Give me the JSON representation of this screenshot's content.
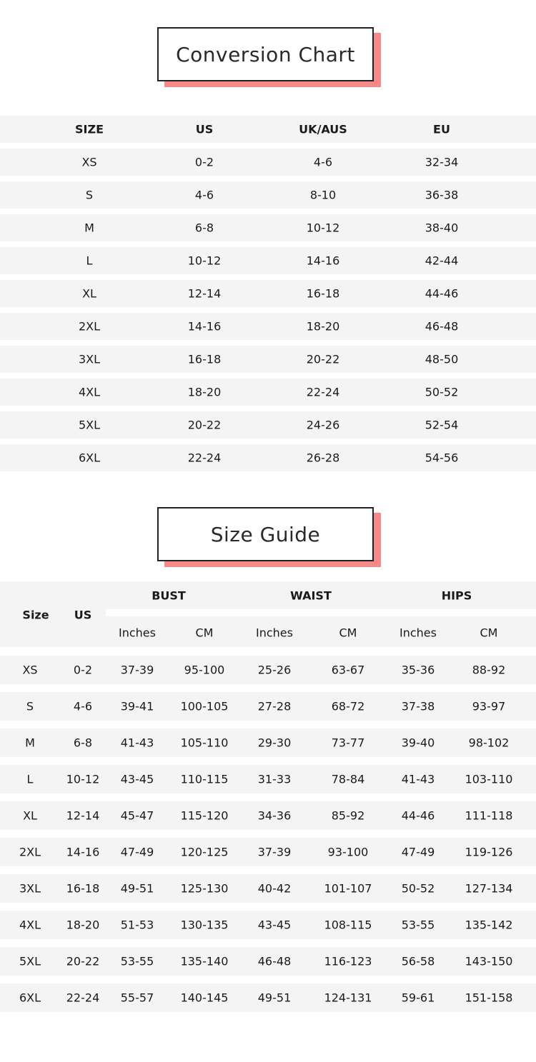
{
  "colors": {
    "accent_shadow": "#f48a8a",
    "band": "#f4f4f4"
  },
  "conversion": {
    "title": "Conversion Chart",
    "headers": [
      "SIZE",
      "US",
      "UK/AUS",
      "EU"
    ],
    "rows": [
      [
        "XS",
        "0-2",
        "4-6",
        "32-34"
      ],
      [
        "S",
        "4-6",
        "8-10",
        "36-38"
      ],
      [
        "M",
        "6-8",
        "10-12",
        "38-40"
      ],
      [
        "L",
        "10-12",
        "14-16",
        "42-44"
      ],
      [
        "XL",
        "12-14",
        "16-18",
        "44-46"
      ],
      [
        "2XL",
        "14-16",
        "18-20",
        "46-48"
      ],
      [
        "3XL",
        "16-18",
        "20-22",
        "48-50"
      ],
      [
        "4XL",
        "18-20",
        "22-24",
        "50-52"
      ],
      [
        "5XL",
        "20-22",
        "24-26",
        "52-54"
      ],
      [
        "6XL",
        "22-24",
        "26-28",
        "54-56"
      ]
    ]
  },
  "guide": {
    "title": "Size Guide",
    "headers": {
      "size": "Size",
      "us": "US",
      "groups": [
        "BUST",
        "WAIST",
        "HIPS"
      ],
      "units": [
        "Inches",
        "CM",
        "Inches",
        "CM",
        "Inches",
        "CM"
      ]
    },
    "rows": [
      [
        "XS",
        "0-2",
        "37-39",
        "95-100",
        "25-26",
        "63-67",
        "35-36",
        "88-92"
      ],
      [
        "S",
        "4-6",
        "39-41",
        "100-105",
        "27-28",
        "68-72",
        "37-38",
        "93-97"
      ],
      [
        "M",
        "6-8",
        "41-43",
        "105-110",
        "29-30",
        "73-77",
        "39-40",
        "98-102"
      ],
      [
        "L",
        "10-12",
        "43-45",
        "110-115",
        "31-33",
        "78-84",
        "41-43",
        "103-110"
      ],
      [
        "XL",
        "12-14",
        "45-47",
        "115-120",
        "34-36",
        "85-92",
        "44-46",
        "111-118"
      ],
      [
        "2XL",
        "14-16",
        "47-49",
        "120-125",
        "37-39",
        "93-100",
        "47-49",
        "119-126"
      ],
      [
        "3XL",
        "16-18",
        "49-51",
        "125-130",
        "40-42",
        "101-107",
        "50-52",
        "127-134"
      ],
      [
        "4XL",
        "18-20",
        "51-53",
        "130-135",
        "43-45",
        "108-115",
        "53-55",
        "135-142"
      ],
      [
        "5XL",
        "20-22",
        "53-55",
        "135-140",
        "46-48",
        "116-123",
        "56-58",
        "143-150"
      ],
      [
        "6XL",
        "22-24",
        "55-57",
        "140-145",
        "49-51",
        "124-131",
        "59-61",
        "151-158"
      ]
    ]
  }
}
